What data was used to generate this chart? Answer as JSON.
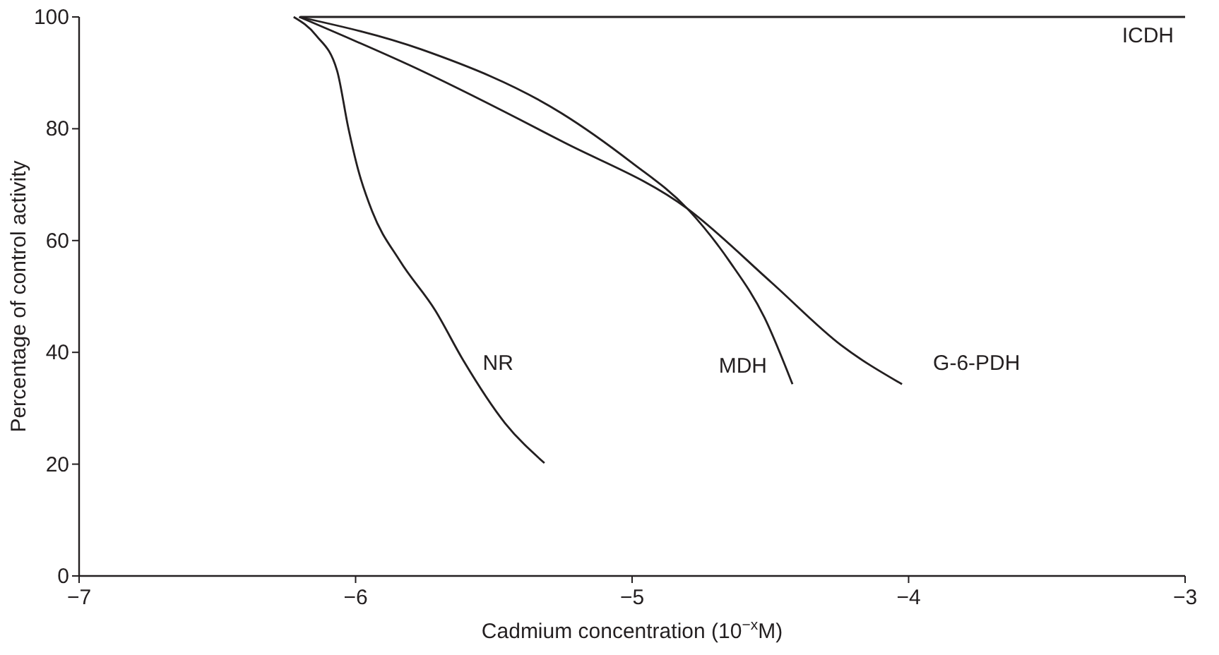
{
  "chart_data": {
    "type": "line",
    "xlabel": "Cadmium concentration (10$^{−x}$M)",
    "ylabel": "Percentage of control activity",
    "xlim": [
      -7,
      -3
    ],
    "ylim": [
      0,
      100
    ],
    "xticks": [
      {
        "value": -7,
        "label": "−7"
      },
      {
        "value": -6,
        "label": "−6"
      },
      {
        "value": -5,
        "label": "−5"
      },
      {
        "value": -4,
        "label": "−4"
      },
      {
        "value": -3,
        "label": "−3"
      }
    ],
    "yticks": [
      0,
      20,
      40,
      60,
      80,
      100
    ],
    "grid": false,
    "marker": "none",
    "line_style": "solid",
    "series": [
      {
        "name": "NR",
        "color": "#231f20",
        "x": [
          -6.224,
          -6.143,
          -6.067,
          -6.027,
          -5.991,
          -5.94,
          -5.839,
          -5.712,
          -5.611,
          -5.459,
          -5.317
        ],
        "values": [
          100,
          96.7,
          90.4,
          80.3,
          72.7,
          65.2,
          56.3,
          47.5,
          38.6,
          27.3,
          20.2
        ]
      },
      {
        "name": "MDH",
        "color": "#231f20",
        "x": [
          -6.204,
          -5.763,
          -5.256,
          -5.003,
          -4.8,
          -4.648,
          -4.521,
          -4.42
        ],
        "values": [
          100,
          94.2,
          82.8,
          74,
          65.7,
          56.3,
          46.2,
          34.3
        ]
      },
      {
        "name": "G-6-PDH",
        "color": "#231f20",
        "x": [
          -6.204,
          -5.763,
          -5.256,
          -4.8,
          -4.496,
          -4.242,
          -4.024
        ],
        "values": [
          100,
          90.4,
          77.8,
          65.7,
          52.5,
          41.2,
          34.3
        ]
      },
      {
        "name": "ICDH",
        "color": "#231f20",
        "x": [
          -6.2,
          -3
        ],
        "values": [
          100,
          100
        ]
      }
    ]
  }
}
